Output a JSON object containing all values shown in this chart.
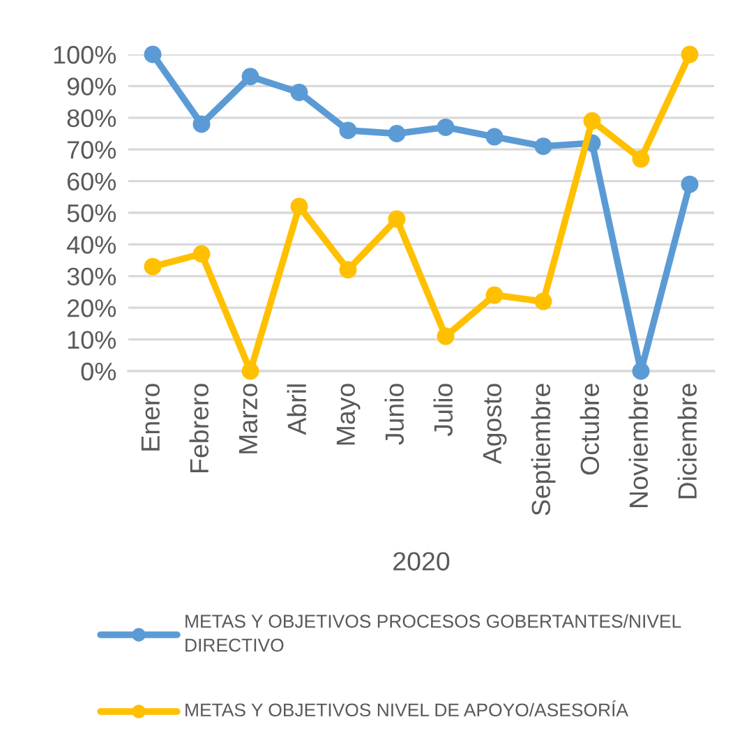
{
  "chart_data": {
    "type": "line",
    "categories": [
      "Enero",
      "Febrero",
      "Marzo",
      "Abril",
      "Mayo",
      "Junio",
      "Julio",
      "Agosto",
      "Septiembre",
      "Octubre",
      "Noviembre",
      "Diciembre"
    ],
    "xlabel": "2020",
    "series": [
      {
        "name": "METAS Y OBJETIVOS PROCESOS GOBERTANTES/NIVEL DIRECTIVO",
        "color": "#5b9bd5",
        "values": [
          100,
          78,
          93,
          88,
          76,
          75,
          77,
          74,
          71,
          72,
          0,
          59
        ]
      },
      {
        "name": "METAS Y OBJETIVOS NIVEL DE APOYO/ASESORÍA",
        "color": "#ffc000",
        "values": [
          33,
          37,
          0,
          52,
          32,
          48,
          11,
          24,
          22,
          79,
          67,
          100
        ]
      }
    ],
    "ylim": [
      0,
      100
    ],
    "yticks": [
      {
        "value": 0,
        "label": "0%"
      },
      {
        "value": 10,
        "label": "10%"
      },
      {
        "value": 20,
        "label": "20%"
      },
      {
        "value": 30,
        "label": "30%"
      },
      {
        "value": 40,
        "label": "40%"
      },
      {
        "value": 50,
        "label": "50%"
      },
      {
        "value": 60,
        "label": "60%"
      },
      {
        "value": 70,
        "label": "70%"
      },
      {
        "value": 80,
        "label": "80%"
      },
      {
        "value": 90,
        "label": "90%"
      },
      {
        "value": 100,
        "label": "100%"
      }
    ],
    "grid": "y",
    "legend": "bottom",
    "marker": "circle",
    "line_style": "solid"
  }
}
